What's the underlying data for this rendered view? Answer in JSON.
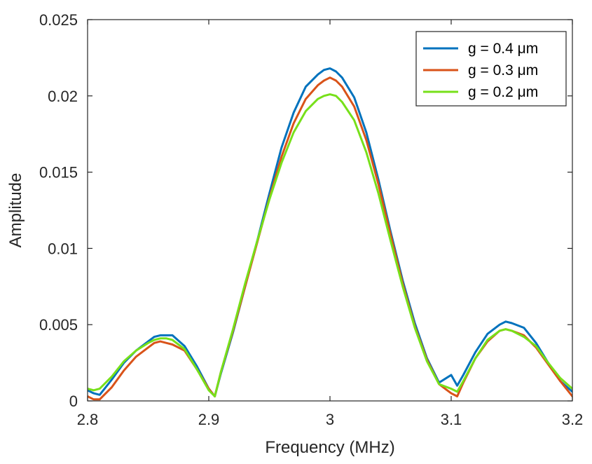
{
  "chart_data": {
    "type": "line",
    "title": "",
    "xlabel": "Frequency (MHz)",
    "ylabel": "Amplitude",
    "xlim": [
      2.8,
      3.2
    ],
    "ylim": [
      0,
      0.025
    ],
    "xticks": [
      2.8,
      2.9,
      3.0,
      3.1,
      3.2
    ],
    "xtick_labels": [
      "2.8",
      "2.9",
      "3",
      "3.1",
      "3.2"
    ],
    "yticks": [
      0,
      0.005,
      0.01,
      0.015,
      0.02,
      0.025
    ],
    "ytick_labels": [
      "0",
      "0.005",
      "0.01",
      "0.015",
      "0.02",
      "0.025"
    ],
    "grid": false,
    "legend_position": "top-right",
    "series": [
      {
        "name": "g = 0.4 μm",
        "color": "#0072BD",
        "x": [
          2.8,
          2.805,
          2.81,
          2.82,
          2.83,
          2.84,
          2.85,
          2.855,
          2.86,
          2.865,
          2.87,
          2.88,
          2.89,
          2.9,
          2.905,
          2.91,
          2.92,
          2.93,
          2.94,
          2.95,
          2.96,
          2.97,
          2.98,
          2.99,
          2.995,
          3.0,
          3.005,
          3.01,
          3.02,
          3.03,
          3.04,
          3.05,
          3.06,
          3.07,
          3.08,
          3.09,
          3.1,
          3.105,
          3.11,
          3.12,
          3.13,
          3.14,
          3.145,
          3.15,
          3.16,
          3.17,
          3.18,
          3.19,
          3.2
        ],
        "y": [
          0.0007,
          0.0005,
          0.0004,
          0.0014,
          0.0025,
          0.0033,
          0.0039,
          0.0042,
          0.0043,
          0.0043,
          0.0043,
          0.0036,
          0.0023,
          0.0008,
          0.0003,
          0.0018,
          0.0045,
          0.0075,
          0.0105,
          0.0136,
          0.0166,
          0.0189,
          0.0206,
          0.0214,
          0.0217,
          0.0218,
          0.0216,
          0.0212,
          0.0199,
          0.0176,
          0.0145,
          0.0111,
          0.0079,
          0.0051,
          0.0028,
          0.0012,
          0.0017,
          0.001,
          0.0017,
          0.0032,
          0.0044,
          0.005,
          0.0052,
          0.0051,
          0.0048,
          0.0038,
          0.0025,
          0.0013,
          0.0006
        ]
      },
      {
        "name": "g = 0.3 μm",
        "color": "#D95319",
        "x": [
          2.8,
          2.805,
          2.81,
          2.82,
          2.83,
          2.84,
          2.85,
          2.855,
          2.86,
          2.865,
          2.87,
          2.88,
          2.89,
          2.9,
          2.905,
          2.91,
          2.92,
          2.93,
          2.94,
          2.95,
          2.96,
          2.97,
          2.98,
          2.99,
          2.995,
          3.0,
          3.005,
          3.01,
          3.02,
          3.03,
          3.04,
          3.05,
          3.06,
          3.07,
          3.08,
          3.09,
          3.1,
          3.105,
          3.11,
          3.12,
          3.13,
          3.14,
          3.145,
          3.15,
          3.16,
          3.17,
          3.18,
          3.19,
          3.2
        ],
        "y": [
          0.0003,
          0.0001,
          0.0001,
          0.0009,
          0.002,
          0.0029,
          0.0035,
          0.0038,
          0.0039,
          0.0038,
          0.0037,
          0.0033,
          0.0021,
          0.0008,
          0.0003,
          0.0019,
          0.0046,
          0.0075,
          0.0104,
          0.0133,
          0.016,
          0.0182,
          0.0198,
          0.0207,
          0.021,
          0.0212,
          0.021,
          0.0206,
          0.0193,
          0.0171,
          0.0142,
          0.0109,
          0.0077,
          0.0049,
          0.0027,
          0.0011,
          0.0005,
          0.0003,
          0.0012,
          0.0028,
          0.0039,
          0.0046,
          0.0047,
          0.0046,
          0.0043,
          0.0035,
          0.0024,
          0.0013,
          0.0003
        ]
      },
      {
        "name": "g = 0.2 μm",
        "color": "#77E01A",
        "x": [
          2.8,
          2.805,
          2.81,
          2.82,
          2.83,
          2.84,
          2.85,
          2.855,
          2.86,
          2.865,
          2.87,
          2.88,
          2.89,
          2.9,
          2.905,
          2.91,
          2.92,
          2.93,
          2.94,
          2.95,
          2.96,
          2.97,
          2.98,
          2.99,
          2.995,
          3.0,
          3.005,
          3.01,
          3.02,
          3.03,
          3.04,
          3.05,
          3.06,
          3.07,
          3.08,
          3.09,
          3.1,
          3.105,
          3.11,
          3.12,
          3.13,
          3.14,
          3.145,
          3.15,
          3.16,
          3.17,
          3.18,
          3.19,
          3.2
        ],
        "y": [
          0.0008,
          0.0007,
          0.0008,
          0.0016,
          0.0026,
          0.0033,
          0.0038,
          0.004,
          0.0041,
          0.0041,
          0.004,
          0.0034,
          0.0021,
          0.0007,
          0.0003,
          0.0019,
          0.0047,
          0.0077,
          0.0105,
          0.0132,
          0.0156,
          0.0176,
          0.019,
          0.0198,
          0.02,
          0.0201,
          0.02,
          0.0196,
          0.0184,
          0.0163,
          0.0136,
          0.0105,
          0.0075,
          0.0048,
          0.0026,
          0.0011,
          0.0008,
          0.0006,
          0.0013,
          0.0028,
          0.004,
          0.0046,
          0.0047,
          0.0046,
          0.0042,
          0.0036,
          0.0025,
          0.0015,
          0.0008
        ]
      }
    ]
  }
}
